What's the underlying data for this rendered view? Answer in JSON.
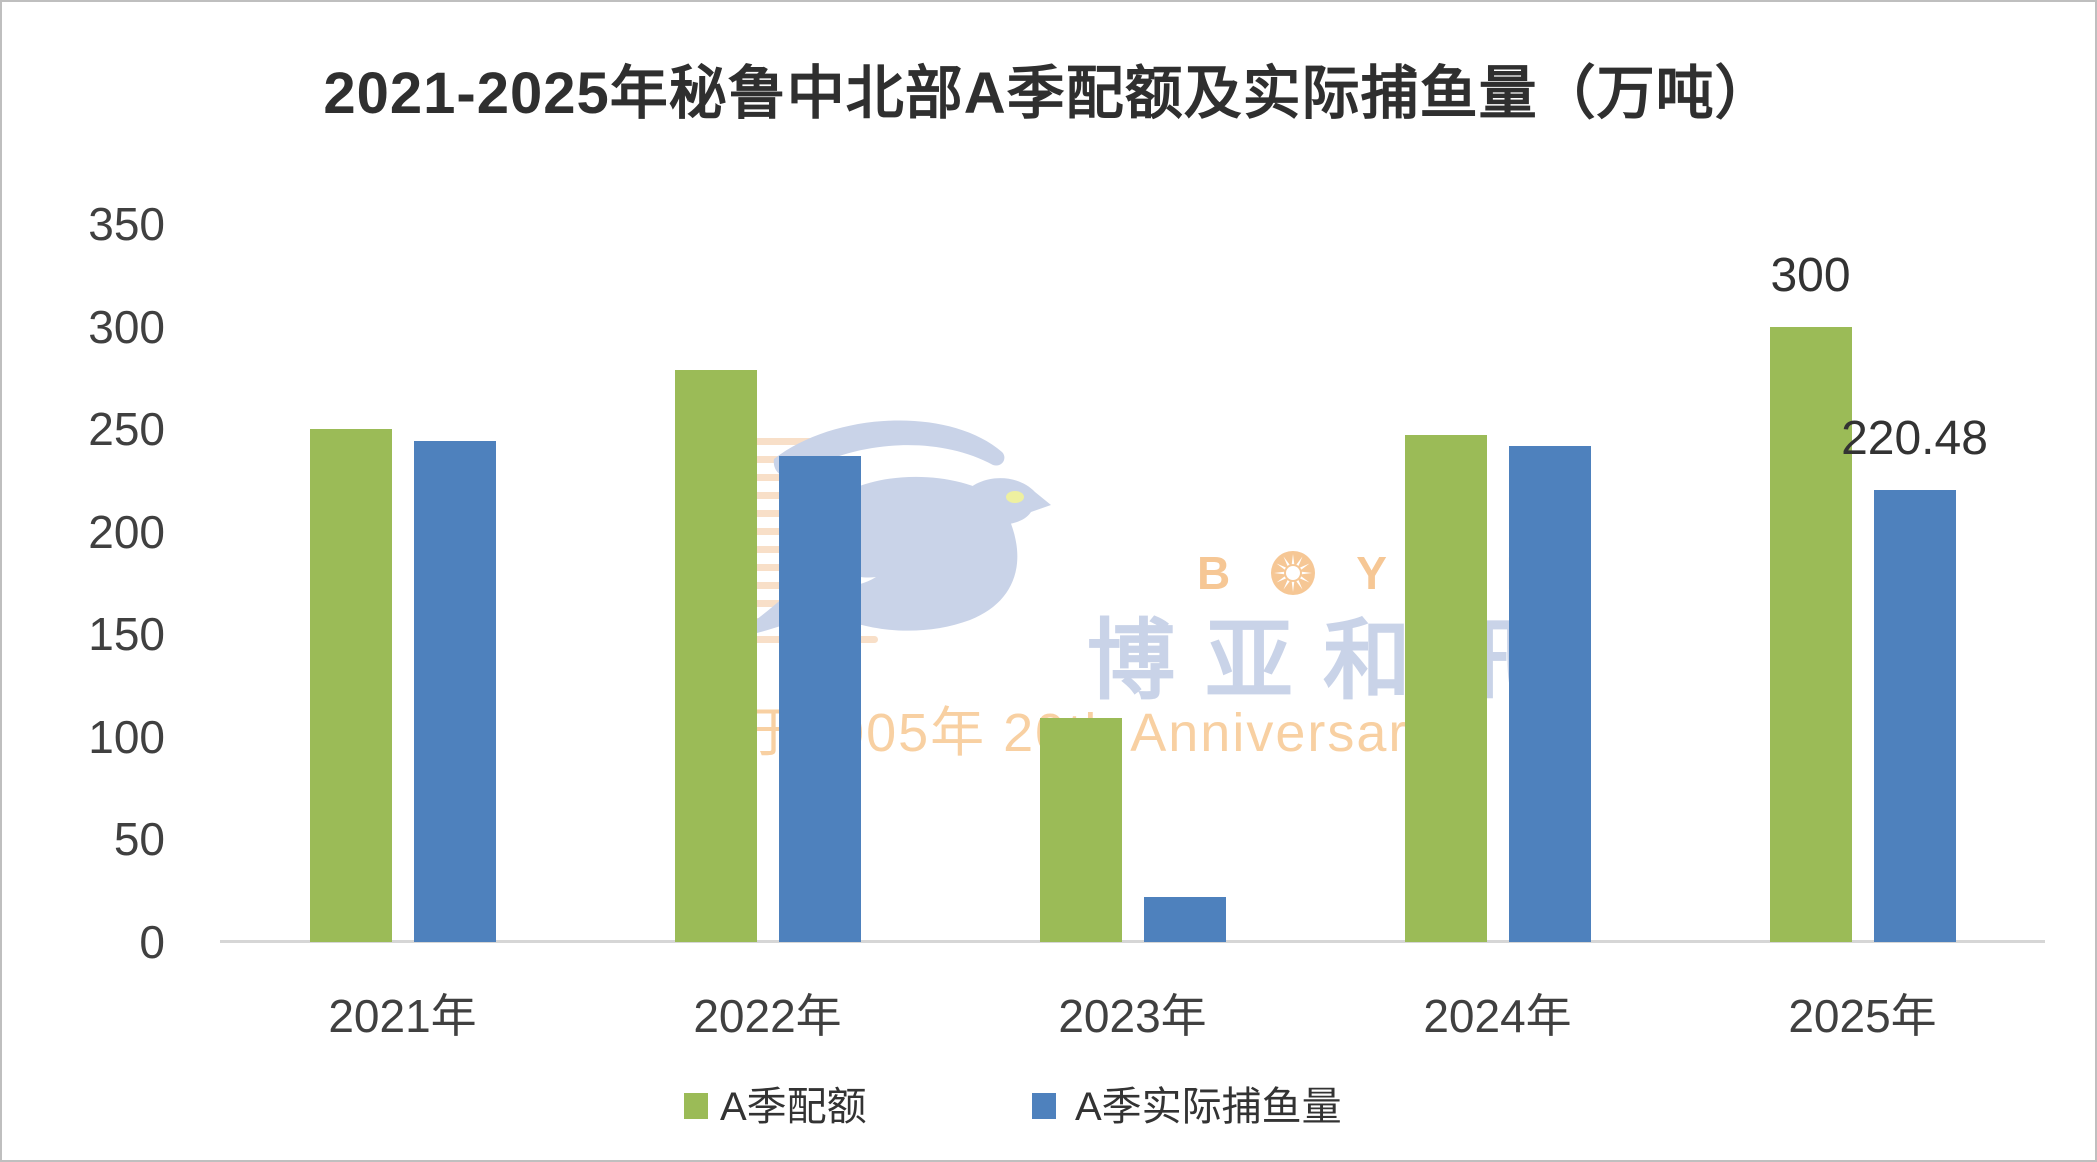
{
  "title": "2021-2025年秘鲁中北部A季配额及实际捕鱼量（万吨）",
  "chart_data": {
    "type": "bar",
    "title": "2021-2025年秘鲁中北部A季配额及实际捕鱼量（万吨）",
    "categories": [
      "2021年",
      "2022年",
      "2023年",
      "2024年",
      "2025年"
    ],
    "series": [
      {
        "name": "A季配额",
        "color": "#9bbb57",
        "values": [
          250,
          279,
          109,
          247,
          300
        ],
        "data_labels": [
          null,
          null,
          null,
          null,
          "300"
        ]
      },
      {
        "name": "A季实际捕鱼量",
        "color": "#4e81bd",
        "values": [
          244,
          237,
          22,
          242,
          220.48
        ],
        "data_labels": [
          null,
          null,
          null,
          null,
          "220.48"
        ]
      }
    ],
    "xlabel": "",
    "ylabel": "",
    "ylim": [
      0,
      350
    ],
    "yticks": [
      0,
      50,
      100,
      150,
      200,
      250,
      300,
      350
    ],
    "grid": false,
    "legend_position": "bottom",
    "colors": {
      "axis_line": "#d6d6d6",
      "tick_text": "#404040",
      "title_text": "#2f2f2f"
    }
  },
  "legend": {
    "items": [
      {
        "label": "A季配额",
        "color": "#9bbb57"
      },
      {
        "label": "A季实际捕鱼量",
        "color": "#4e81bd"
      }
    ]
  },
  "watermark": {
    "brand_prefix": "B",
    "brand_suffix": "YAR",
    "sun_icon": "sun-burst",
    "cn_name": "博亚和讯",
    "anniversary": "创于2005年 20th Anniversary",
    "colors": {
      "bird": "#c9d3e8",
      "brand": "#f6c795",
      "cn": "#c9d3e8",
      "anniversary": "#f8d0a2",
      "speedlines": "#f8dfc8",
      "eye": "#eef0a0"
    }
  }
}
